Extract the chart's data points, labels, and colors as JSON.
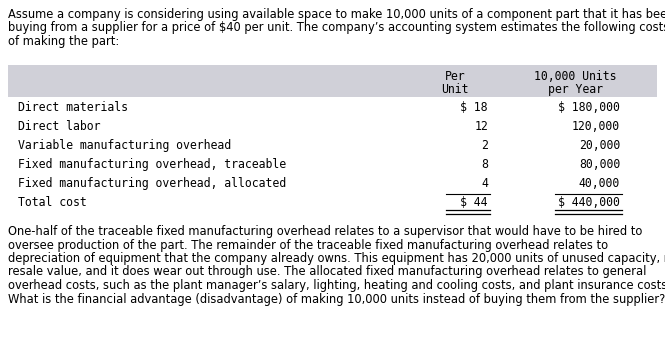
{
  "intro_text": "Assume a company is considering using available space to make 10,000 units of a component part that it has been\nbuying from a supplier for a price of $40 per unit. The company’s accounting system estimates the following costs\nof making the part:",
  "header_col2_line1": "Per",
  "header_col2_line2": "Unit",
  "header_col3_line1": "10,000 Units",
  "header_col3_line2": "per Year",
  "rows": [
    {
      "label": "Direct materials",
      "unit": "$ 18",
      "year": "$ 180,000"
    },
    {
      "label": "Direct labor",
      "unit": "12",
      "year": "120,000"
    },
    {
      "label": "Variable manufacturing overhead",
      "unit": "2",
      "year": "20,000"
    },
    {
      "label": "Fixed manufacturing overhead, traceable",
      "unit": "8",
      "year": "80,000"
    },
    {
      "label": "Fixed manufacturing overhead, allocated",
      "unit": "4",
      "year": "40,000"
    },
    {
      "label": "Total cost",
      "unit": "$ 44",
      "year": "$ 440,000"
    }
  ],
  "footer_text": "One-half of the traceable fixed manufacturing overhead relates to a supervisor that would have to be hired to\noversee production of the part. The remainder of the traceable fixed manufacturing overhead relates to\ndepreciation of equipment that the company already owns. This equipment has 20,000 units of unused capacity, no\nresale value, and it does wear out through use. The allocated fixed manufacturing overhead relates to general\noverhead costs, such as the plant manager’s salary, lighting, heating and cooling costs, and plant insurance costs.\nWhat is the financial advantage (disadvantage) of making 10,000 units instead of buying them from the supplier?",
  "header_bg_color": "#d0d0d8",
  "table_font": "monospace",
  "body_font": "DejaVu Sans",
  "bg_color": "#ffffff",
  "text_color": "#000000",
  "font_size_intro": 8.3,
  "font_size_table": 8.3,
  "font_size_footer": 8.3
}
